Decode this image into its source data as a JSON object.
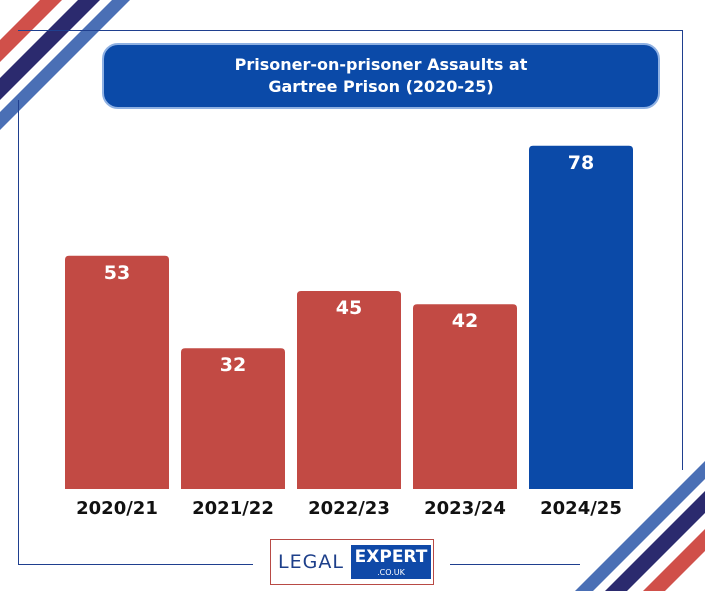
{
  "chart_data": {
    "type": "bar",
    "title": "Prisoner-on-prisoner Assaults at",
    "subtitle": "Gartree Prison (2020-25)",
    "categories": [
      "2020/21",
      "2021/22",
      "2022/23",
      "2023/24",
      "2024/25"
    ],
    "values": [
      53,
      32,
      45,
      42,
      78
    ],
    "bar_colors": [
      "#c24a44",
      "#c24a44",
      "#c24a44",
      "#c24a44",
      "#0b4aa8"
    ],
    "ylim": [
      0,
      80
    ],
    "grid": false,
    "legend": "none"
  },
  "logo": {
    "legal": "LEGAL",
    "expert": "EXPERT",
    "couk": ".CO.UK"
  },
  "colors": {
    "red": "#c24a44",
    "blue": "#0b4aa8",
    "navy": "#2b2a6e",
    "frame": "#1f3f8f"
  }
}
